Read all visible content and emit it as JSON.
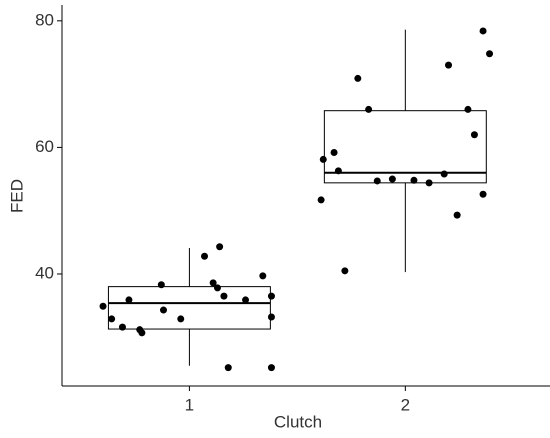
{
  "chart_data": {
    "type": "box",
    "xlabel": "Clutch",
    "ylabel": "FED",
    "xlim": [
      0.41,
      2.67
    ],
    "xticks": [
      1,
      2
    ],
    "ylim": [
      22.3,
      82.5
    ],
    "yticks": [
      40,
      60,
      80
    ],
    "grid": false,
    "box_width": 0.75,
    "box_color": "#000000",
    "point_color": "#000000",
    "boxes": [
      {
        "x": 1,
        "whislo": 25.5,
        "q1": 31.3,
        "med": 35.4,
        "q3": 38.0,
        "whishi": 44.1
      },
      {
        "x": 2,
        "whislo": 40.3,
        "q1": 54.4,
        "med": 56.0,
        "q3": 65.8,
        "whishi": 78.6
      }
    ],
    "series": [
      {
        "x": [
          0.6,
          0.64,
          0.69,
          0.72,
          0.77,
          0.78,
          0.87,
          0.88,
          0.96,
          1.07,
          1.11,
          1.13,
          1.14,
          1.16,
          1.18,
          1.26,
          1.34,
          1.38,
          1.38,
          1.38
        ],
        "values": [
          34.9,
          32.9,
          31.6,
          35.9,
          31.2,
          30.7,
          38.3,
          34.3,
          32.9,
          42.8,
          38.6,
          37.8,
          44.3,
          36.5,
          25.2,
          35.9,
          39.7,
          36.5,
          33.2,
          25.2
        ]
      },
      {
        "x": [
          1.61,
          1.62,
          1.67,
          1.69,
          1.72,
          1.78,
          1.83,
          1.87,
          1.94,
          2.04,
          2.11,
          2.18,
          2.2,
          2.24,
          2.29,
          2.32,
          2.36,
          2.36,
          2.39
        ],
        "values": [
          51.7,
          58.1,
          59.2,
          56.3,
          40.5,
          70.9,
          66.0,
          54.7,
          55.0,
          54.8,
          54.4,
          55.8,
          73.0,
          49.3,
          66.0,
          62.0,
          52.6,
          78.4,
          74.8
        ]
      }
    ]
  }
}
